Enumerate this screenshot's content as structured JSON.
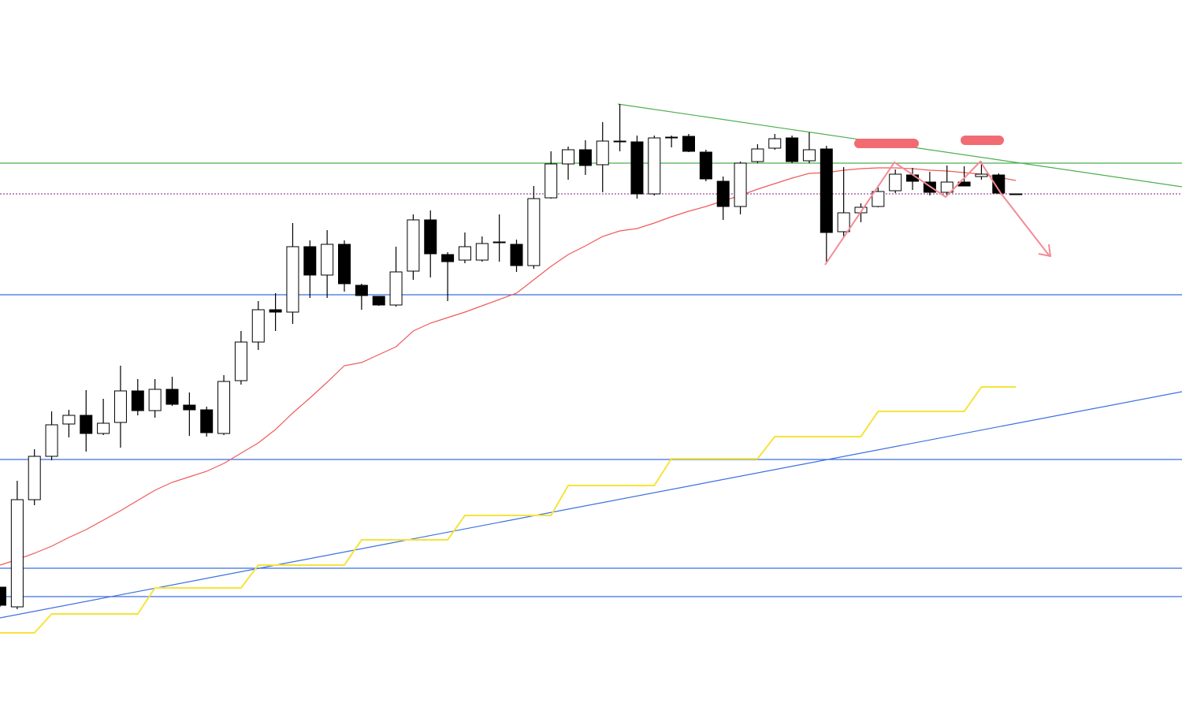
{
  "chart_data": {
    "type": "candlestick",
    "ylim": [
      0,
      892
    ],
    "up_color": "#ffffff",
    "down_color": "#000000",
    "candles": [
      [
        147,
        147,
        122,
        124
      ],
      [
        122,
        282,
        119,
        258
      ],
      [
        258,
        322,
        251,
        313
      ],
      [
        313,
        370,
        308,
        353
      ],
      [
        354,
        372,
        337,
        365
      ],
      [
        365,
        397,
        319,
        342
      ],
      [
        342,
        386,
        340,
        355
      ],
      [
        356,
        428,
        324,
        396
      ],
      [
        396,
        411,
        365,
        371
      ],
      [
        371,
        411,
        362,
        398
      ],
      [
        398,
        414,
        377,
        379
      ],
      [
        378,
        394,
        339,
        372
      ],
      [
        372,
        376,
        338,
        343
      ],
      [
        342,
        416,
        340,
        408
      ],
      [
        409,
        472,
        404,
        458
      ],
      [
        458,
        510,
        448,
        499
      ],
      [
        499,
        520,
        472,
        496
      ],
      [
        496,
        609,
        481,
        579
      ],
      [
        579,
        587,
        514,
        543
      ],
      [
        543,
        600,
        514,
        582
      ],
      [
        582,
        587,
        522,
        532
      ],
      [
        530,
        532,
        499,
        517
      ],
      [
        516,
        516,
        504,
        505
      ],
      [
        505,
        579,
        503,
        547
      ],
      [
        548,
        620,
        537,
        613
      ],
      [
        613,
        625,
        540,
        570
      ],
      [
        569,
        572,
        510,
        560
      ],
      [
        562,
        597,
        558,
        579
      ],
      [
        562,
        592,
        560,
        583
      ],
      [
        585,
        620,
        560,
        584
      ],
      [
        582,
        588,
        547,
        555
      ],
      [
        555,
        656,
        551,
        640
      ],
      [
        641,
        700,
        640,
        684
      ],
      [
        684,
        706,
        664,
        702
      ],
      [
        702,
        714,
        670,
        682
      ],
      [
        683,
        737,
        648,
        713
      ],
      [
        713,
        760,
        700,
        712
      ],
      [
        712,
        720,
        640,
        646
      ],
      [
        646,
        720,
        644,
        717
      ],
      [
        718,
        720,
        705,
        717
      ],
      [
        719,
        722,
        699,
        700
      ],
      [
        699,
        702,
        662,
        665
      ],
      [
        662,
        668,
        613,
        630
      ],
      [
        630,
        687,
        620,
        685
      ],
      [
        687,
        709,
        685,
        703
      ],
      [
        704,
        722,
        702,
        716
      ],
      [
        717,
        720,
        685,
        687
      ],
      [
        688,
        724,
        685,
        702
      ],
      [
        703,
        707,
        560,
        597
      ],
      [
        598,
        680,
        590,
        622
      ],
      [
        622,
        634,
        610,
        629
      ],
      [
        630,
        654,
        629,
        649
      ],
      [
        650,
        677,
        647,
        671
      ],
      [
        670,
        679,
        651,
        662
      ],
      [
        661,
        674,
        644,
        648
      ],
      [
        648,
        682,
        644,
        661
      ],
      [
        661,
        681,
        656,
        656
      ],
      [
        668,
        687,
        664,
        671
      ],
      [
        670,
        672,
        646,
        647
      ],
      [
        646,
        646,
        645,
        646
      ]
    ],
    "series": [
      {
        "color": "#f05a5a",
        "values": [
          175,
          182,
          190,
          199,
          210,
          220,
          232,
          244,
          257,
          270,
          280,
          287,
          294,
          304,
          317,
          330,
          347,
          368,
          387,
          407,
          428,
          432,
          442,
          452,
          472,
          482,
          489,
          496,
          504,
          512,
          520,
          537,
          554,
          569,
          580,
          592,
          599,
          602,
          609,
          617,
          624,
          630,
          637,
          644,
          652,
          659,
          666,
          672,
          673,
          676,
          678,
          679,
          679,
          678,
          676,
          675,
          673,
          671,
          667,
          663
        ]
      },
      {
        "color": "#f5e43a",
        "values": [
          89,
          89,
          89,
          113,
          113,
          113,
          113,
          113,
          113,
          146,
          146,
          146,
          146,
          146,
          146,
          175,
          175,
          175,
          175,
          175,
          175,
          207,
          207,
          207,
          207,
          207,
          207,
          238,
          238,
          238,
          238,
          238,
          238,
          276,
          276,
          276,
          276,
          276,
          276,
          310,
          310,
          310,
          310,
          310,
          310,
          338,
          338,
          338,
          338,
          338,
          338,
          370,
          370,
          370,
          370,
          370,
          370,
          401,
          401,
          401
        ]
      }
    ],
    "levels": [
      {
        "value": 685,
        "color": "#4caf50",
        "dash": false
      },
      {
        "value": 646,
        "color": "#9c4a9c",
        "dash": true
      },
      {
        "value": 518,
        "color": "#3b6fe0",
        "dash": false
      },
      {
        "value": 309,
        "color": "#3b6fe0",
        "dash": false
      },
      {
        "value": 171,
        "color": "#3b6fe0",
        "dash": false
      },
      {
        "value": 135,
        "color": "#3b6fe0",
        "dash": false
      }
    ],
    "trendlines": [
      {
        "color": "#3b6fe0",
        "x": [
          0,
          68.65
        ],
        "values": [
          108,
          395
        ]
      },
      {
        "color": "#4caf50",
        "x": [
          35.88,
          68.65
        ],
        "values": [
          760,
          655
        ]
      }
    ]
  }
}
